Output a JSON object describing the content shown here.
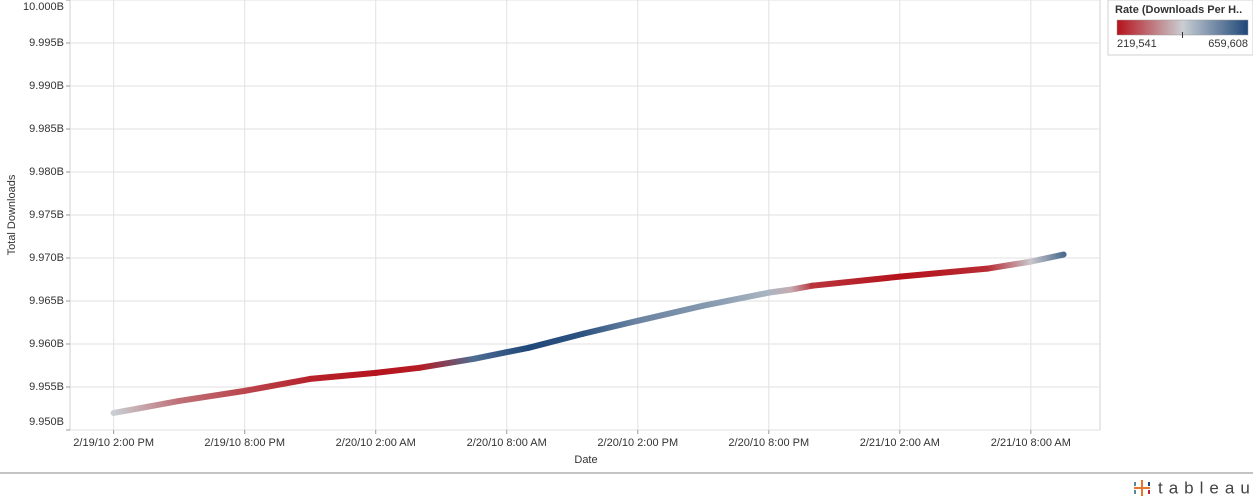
{
  "chart_data": {
    "type": "line",
    "x_label": "Date",
    "y_label": "Total Downloads",
    "x": [
      "2010-02-19T14:00",
      "2010-02-19T17:00",
      "2010-02-19T20:00",
      "2010-02-19T23:00",
      "2010-02-20T02:00",
      "2010-02-20T04:00",
      "2010-02-20T06:30",
      "2010-02-20T09:00",
      "2010-02-20T11:30",
      "2010-02-20T14:00",
      "2010-02-20T17:00",
      "2010-02-20T20:00",
      "2010-02-20T21:00",
      "2010-02-20T22:00",
      "2010-02-21T02:00",
      "2010-02-21T06:00",
      "2010-02-21T08:00",
      "2010-02-21T09:30"
    ],
    "series": [
      {
        "name": "Total Downloads",
        "values": [
          9951980000,
          9953380000,
          9954550000,
          9955940000,
          9956640000,
          9957230000,
          9958280000,
          9959560000,
          9961190000,
          9962700000,
          9964450000,
          9965970000,
          9966320000,
          9966780000,
          9967830000,
          9968760000,
          9969580000,
          9970400000
        ],
        "color_values": [
          440000,
          330000,
          280000,
          240000,
          222000,
          230000,
          600000,
          659608,
          640000,
          560000,
          530000,
          480000,
          400000,
          260000,
          219541,
          250000,
          430000,
          600000
        ]
      }
    ],
    "color_legend": {
      "title": "Rate (Downloads Per H..",
      "colors": [
        "#b5121b",
        "#c9ced3",
        "#1f4779"
      ],
      "ticks": [
        {
          "value": 219541,
          "label": "219,541"
        },
        {
          "value": 659608,
          "label": "659,608"
        }
      ]
    },
    "xlim": [
      "2010-02-19T12:00",
      "2010-02-21T11:10"
    ],
    "xticks": [
      {
        "value": "2010-02-19T14:00",
        "label": "2/19/10 2:00 PM"
      },
      {
        "value": "2010-02-19T20:00",
        "label": "2/19/10 8:00 PM"
      },
      {
        "value": "2010-02-20T02:00",
        "label": "2/20/10 2:00 AM"
      },
      {
        "value": "2010-02-20T08:00",
        "label": "2/20/10 8:00 AM"
      },
      {
        "value": "2010-02-20T14:00",
        "label": "2/20/10 2:00 PM"
      },
      {
        "value": "2010-02-20T20:00",
        "label": "2/20/10 8:00 PM"
      },
      {
        "value": "2010-02-21T02:00",
        "label": "2/21/10 2:00 AM"
      },
      {
        "value": "2010-02-21T08:00",
        "label": "2/21/10 8:00 AM"
      }
    ],
    "ylim": [
      9950000000,
      10000000000
    ],
    "yticks": [
      {
        "value": 9950000000,
        "label": "9.950B"
      },
      {
        "value": 9955000000,
        "label": "9.955B"
      },
      {
        "value": 9960000000,
        "label": "9.960B"
      },
      {
        "value": 9965000000,
        "label": "9.965B"
      },
      {
        "value": 9970000000,
        "label": "9.970B"
      },
      {
        "value": 9975000000,
        "label": "9.975B"
      },
      {
        "value": 9980000000,
        "label": "9.980B"
      },
      {
        "value": 9985000000,
        "label": "9.985B"
      },
      {
        "value": 9990000000,
        "label": "9.990B"
      },
      {
        "value": 9995000000,
        "label": "9.995B"
      },
      {
        "value": 10000000000,
        "label": "10.000B"
      }
    ],
    "grid": true
  },
  "footer": {
    "logo": "tableau"
  }
}
